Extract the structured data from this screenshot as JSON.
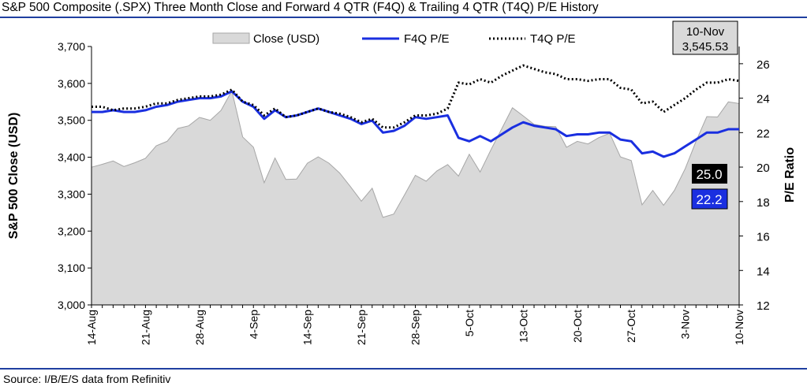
{
  "title": "S&P 500 Composite (.SPX) Three Month Close and Forward 4 QTR (F4Q) & Trailing 4 QTR (T4Q) P/E History",
  "source": "Source: I/B/E/S data from Refinitiv",
  "colors": {
    "rule": "#1f3fa0",
    "f4q": "#1a2fe0",
    "t4q": "#000000",
    "area_fill": "#d9d9d9",
    "area_edge": "#a6a6a6"
  },
  "callouts": {
    "date_box": {
      "line1": "10-Nov",
      "line2": "3,545.53"
    },
    "t4q_value": "25.0",
    "f4q_value": "22.2"
  },
  "chart_data": {
    "type": "area+line",
    "y_left": {
      "label": "S&P 500 Close (USD)",
      "range": [
        3000,
        3700
      ],
      "ticks": [
        3000,
        3100,
        3200,
        3300,
        3400,
        3500,
        3600,
        3700
      ],
      "tick_labels": [
        "3,000",
        "3,100",
        "3,200",
        "3,300",
        "3,400",
        "3,500",
        "3,600",
        "3,700"
      ]
    },
    "y_right": {
      "label": "P/E Ratio",
      "range": [
        12,
        27
      ],
      "ticks": [
        12,
        14,
        16,
        18,
        20,
        22,
        24,
        26
      ],
      "tick_labels": [
        "12",
        "14",
        "16",
        "18",
        "20",
        "22",
        "24",
        "26"
      ]
    },
    "x_tick_labels": [
      {
        "label": "14-Aug",
        "index": 0
      },
      {
        "label": "21-Aug",
        "index": 5
      },
      {
        "label": "28-Aug",
        "index": 10
      },
      {
        "label": "4-Sep",
        "index": 15
      },
      {
        "label": "14-Sep",
        "index": 20
      },
      {
        "label": "21-Sep",
        "index": 25
      },
      {
        "label": "28-Sep",
        "index": 30
      },
      {
        "label": "5-Oct",
        "index": 35
      },
      {
        "label": "13-Oct",
        "index": 40
      },
      {
        "label": "20-Oct",
        "index": 45
      },
      {
        "label": "27-Oct",
        "index": 50
      },
      {
        "label": "3-Nov",
        "index": 55
      },
      {
        "label": "10-Nov",
        "index": 60
      }
    ],
    "series": [
      {
        "name": "Close (USD)",
        "type": "area",
        "axis": "left",
        "values": [
          3373,
          3381,
          3390,
          3375,
          3385,
          3397,
          3431,
          3443,
          3478,
          3485,
          3508,
          3500,
          3527,
          3580,
          3455,
          3427,
          3331,
          3398,
          3340,
          3341,
          3384,
          3401,
          3384,
          3357,
          3320,
          3281,
          3316,
          3237,
          3246,
          3298,
          3351,
          3335,
          3363,
          3380,
          3349,
          3408,
          3360,
          3420,
          3477,
          3534,
          3512,
          3489,
          3484,
          3483,
          3427,
          3443,
          3436,
          3453,
          3465,
          3401,
          3391,
          3271,
          3310,
          3270,
          3310,
          3369,
          3443,
          3510,
          3509,
          3550,
          3545.53
        ]
      },
      {
        "name": "F4Q P/E",
        "type": "line",
        "axis": "right",
        "values": [
          23.2,
          23.2,
          23.3,
          23.2,
          23.2,
          23.3,
          23.5,
          23.6,
          23.8,
          23.9,
          24.0,
          24.0,
          24.1,
          24.4,
          23.8,
          23.5,
          22.8,
          23.3,
          22.9,
          23.0,
          23.2,
          23.4,
          23.2,
          23.0,
          22.8,
          22.5,
          22.7,
          22.0,
          22.1,
          22.4,
          22.9,
          22.8,
          22.9,
          23.0,
          21.7,
          21.5,
          21.8,
          21.5,
          21.9,
          22.3,
          22.6,
          22.4,
          22.3,
          22.2,
          21.8,
          21.9,
          21.9,
          22.0,
          22.0,
          21.6,
          21.5,
          20.8,
          20.9,
          20.6,
          20.8,
          21.2,
          21.6,
          22.0,
          22.0,
          22.2,
          22.2
        ]
      },
      {
        "name": "T4Q P/E",
        "type": "line",
        "axis": "right",
        "values": [
          23.5,
          23.5,
          23.3,
          23.4,
          23.4,
          23.5,
          23.7,
          23.7,
          23.9,
          24.0,
          24.1,
          24.1,
          24.2,
          24.5,
          23.8,
          23.6,
          23.0,
          23.4,
          22.9,
          23.0,
          23.2,
          23.4,
          23.2,
          23.1,
          22.9,
          22.6,
          22.8,
          22.3,
          22.3,
          22.6,
          23.0,
          23.0,
          23.1,
          23.4,
          24.9,
          24.8,
          25.1,
          24.9,
          25.3,
          25.6,
          25.9,
          25.7,
          25.5,
          25.4,
          25.1,
          25.1,
          25.0,
          25.1,
          25.1,
          24.6,
          24.5,
          23.7,
          23.8,
          23.2,
          23.6,
          24.0,
          24.5,
          24.9,
          24.9,
          25.1,
          25.0
        ]
      }
    ],
    "legend": {
      "position": "top",
      "entries": [
        "Close (USD)",
        "F4Q P/E",
        "T4Q P/E"
      ]
    },
    "grid": false
  }
}
